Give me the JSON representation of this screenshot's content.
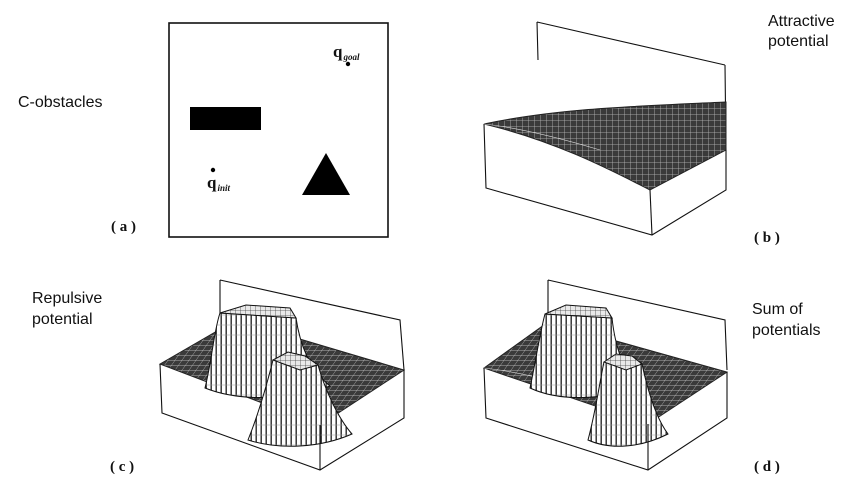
{
  "panels": {
    "a": {
      "tag": "( a )",
      "title": "C-obstacles",
      "q_init": {
        "base": "q",
        "sub": "init"
      },
      "q_goal": {
        "base": "q",
        "sub": "goal"
      }
    },
    "b": {
      "tag": "( b )",
      "title_lines": [
        "Attractive",
        "potential"
      ]
    },
    "c": {
      "tag": "( c )",
      "title_lines": [
        "Repulsive",
        "potential"
      ]
    },
    "d": {
      "tag": "( d )",
      "title_lines": [
        "Sum of",
        "potentials"
      ]
    }
  }
}
